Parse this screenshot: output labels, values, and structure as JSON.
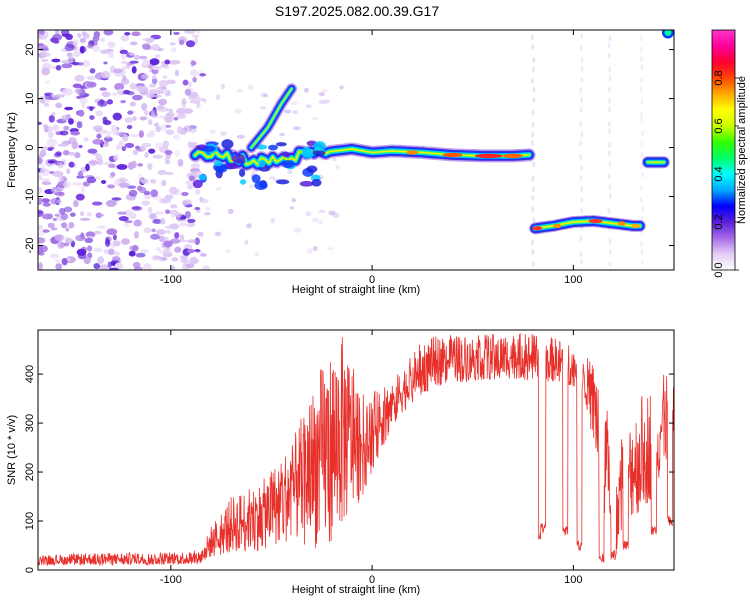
{
  "chart_data": [
    {
      "type": "heatmap",
      "title": "S197.2025.082.00.39.G17",
      "xlabel": "Height of straight line (km)",
      "ylabel": "Frequency (Hz)",
      "xlim": [
        -166,
        150
      ],
      "ylim": [
        -25,
        24
      ],
      "x_ticks": [
        -100,
        0,
        100
      ],
      "y_ticks": [
        -20,
        -10,
        0,
        10,
        20
      ],
      "grid": false,
      "colorbar": {
        "label": "Normalized spectral amplitude",
        "range": [
          0,
          1
        ],
        "ticks": [
          "0.0",
          "0.2",
          "0.4",
          "0.6",
          "0.8"
        ],
        "colors": [
          "#ffffff",
          "#e6ccf5",
          "#a66be6",
          "#5a1fd9",
          "#0000ff",
          "#00aaff",
          "#00ffff",
          "#00ff66",
          "#33ff00",
          "#ccff00",
          "#ffff00",
          "#ffaa00",
          "#ff4400",
          "#ff0033",
          "#ff0099",
          "#ff33cc"
        ]
      },
      "ridge": {
        "description_points": [
          {
            "x": -88,
            "y": -0.5
          },
          {
            "x": -70,
            "y": -2
          },
          {
            "x": -55,
            "y": -3
          },
          {
            "x": -40,
            "y": -2
          },
          {
            "x": -25,
            "y": -1
          },
          {
            "x": -10,
            "y": -0.3
          },
          {
            "x": 0,
            "y": -1
          },
          {
            "x": 10,
            "y": -0.7
          },
          {
            "x": 25,
            "y": -1
          },
          {
            "x": 40,
            "y": -1.5
          },
          {
            "x": 55,
            "y": -1.7
          },
          {
            "x": 70,
            "y": -1.7
          },
          {
            "x": 78,
            "y": -1.5
          }
        ],
        "side_branch": [
          {
            "x": -60,
            "y": 0
          },
          {
            "x": -52,
            "y": 4
          },
          {
            "x": -45,
            "y": 9
          },
          {
            "x": -40,
            "y": 12
          }
        ],
        "low_band": [
          {
            "x": 81,
            "y": -16.5
          },
          {
            "x": 90,
            "y": -16
          },
          {
            "x": 100,
            "y": -15.2
          },
          {
            "x": 110,
            "y": -15
          },
          {
            "x": 120,
            "y": -15.5
          },
          {
            "x": 130,
            "y": -16
          },
          {
            "x": 133,
            "y": -16
          }
        ],
        "right_segment": [
          {
            "x": 137,
            "y": -3
          },
          {
            "x": 145,
            "y": -3
          }
        ],
        "top_right_blob": {
          "x": 147,
          "y": 23.5
        }
      }
    },
    {
      "type": "line",
      "title": "",
      "xlabel": "Height of straight line (km)",
      "ylabel": "SNR (10 * v/v)",
      "xlim": [
        -166,
        150
      ],
      "ylim": [
        0,
        490
      ],
      "x_ticks": [
        -100,
        0,
        100
      ],
      "y_ticks": [
        0,
        100,
        200,
        300,
        400
      ],
      "grid": false,
      "line_color": "#e8302b",
      "series": [
        {
          "name": "",
          "envelope": {
            "x": [
              -166,
              -140,
              -110,
              -85,
              -80,
              -70,
              -55,
              -40,
              -25,
              -15,
              -5,
              5,
              15,
              25,
              35,
              50,
              70,
              85,
              95,
              105,
              112,
              117,
              122,
              128,
              134,
              140,
              145,
              150
            ],
            "lo": [
              10,
              10,
              10,
              12,
              25,
              35,
              40,
              60,
              40,
              80,
              150,
              250,
              320,
              360,
              380,
              385,
              390,
              385,
              380,
              370,
              200,
              60,
              40,
              100,
              120,
              150,
              200,
              250
            ],
            "hi": [
              30,
              35,
              35,
              40,
              90,
              150,
              180,
              260,
              420,
              480,
              360,
              370,
              410,
              470,
              480,
              480,
              485,
              480,
              470,
              440,
              420,
              330,
              260,
              300,
              360,
              380,
              400,
              420
            ]
          },
          "dropouts": [
            {
              "x": 84,
              "y": 60
            },
            {
              "x": 85,
              "y": 75
            },
            {
              "x": 96,
              "y": 70
            },
            {
              "x": 103,
              "y": 40
            },
            {
              "x": 114,
              "y": 15
            },
            {
              "x": 120,
              "y": 20
            },
            {
              "x": 126,
              "y": 40
            },
            {
              "x": 140,
              "y": 70
            },
            {
              "x": 148,
              "y": 90
            }
          ]
        }
      ]
    }
  ]
}
